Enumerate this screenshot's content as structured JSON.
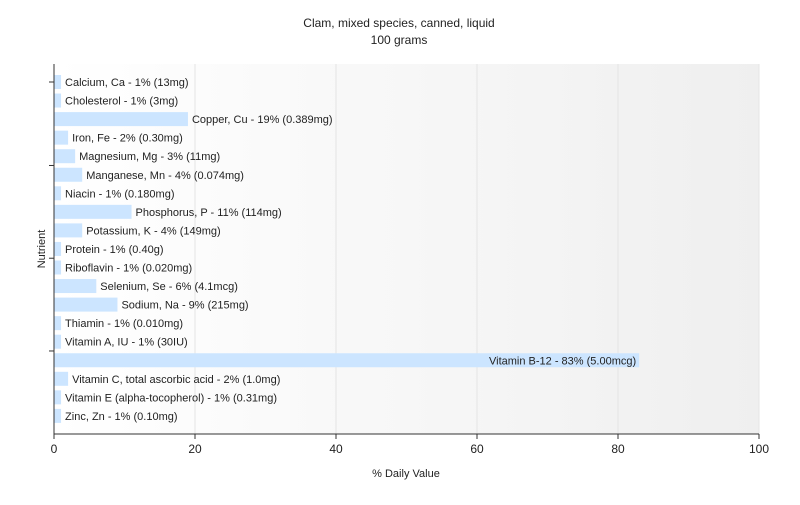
{
  "chart_data": {
    "type": "bar",
    "orientation": "horizontal",
    "title": "Clam, mixed species, canned, liquid",
    "subtitle": "100 grams",
    "xlabel": "% Daily Value",
    "ylabel": "Nutrient",
    "xlim": [
      0,
      100
    ],
    "xticks": [
      "0",
      "20",
      "40",
      "60",
      "80",
      "100"
    ],
    "grid": true,
    "bar_color": "#cce5ff",
    "categories": [
      "Calcium, Ca",
      "Cholesterol",
      "Copper, Cu",
      "Iron, Fe",
      "Magnesium, Mg",
      "Manganese, Mn",
      "Niacin",
      "Phosphorus, P",
      "Potassium, K",
      "Protein",
      "Riboflavin",
      "Selenium, Se",
      "Sodium, Na",
      "Thiamin",
      "Vitamin A, IU",
      "Vitamin B-12",
      "Vitamin C, total ascorbic acid",
      "Vitamin E (alpha-tocopherol)",
      "Zinc, Zn"
    ],
    "values": [
      1,
      1,
      19,
      2,
      3,
      4,
      1,
      11,
      4,
      1,
      1,
      6,
      9,
      1,
      1,
      83,
      2,
      1,
      1
    ],
    "labels": [
      "Calcium, Ca - 1% (13mg)",
      "Cholesterol - 1% (3mg)",
      "Copper, Cu - 19% (0.389mg)",
      "Iron, Fe - 2% (0.30mg)",
      "Magnesium, Mg - 3% (11mg)",
      "Manganese, Mn - 4% (0.074mg)",
      "Niacin - 1% (0.180mg)",
      "Phosphorus, P - 11% (114mg)",
      "Potassium, K - 4% (149mg)",
      "Protein - 1% (0.40g)",
      "Riboflavin - 1% (0.020mg)",
      "Selenium, Se - 6% (4.1mcg)",
      "Sodium, Na - 9% (215mg)",
      "Thiamin - 1% (0.010mg)",
      "Vitamin A, IU - 1% (30IU)",
      "Vitamin B-12 - 83% (5.00mcg)",
      "Vitamin C, total ascorbic acid - 2% (1.0mg)",
      "Vitamin E (alpha-tocopherol) - 1% (0.31mg)",
      "Zinc, Zn - 1% (0.10mg)"
    ]
  }
}
